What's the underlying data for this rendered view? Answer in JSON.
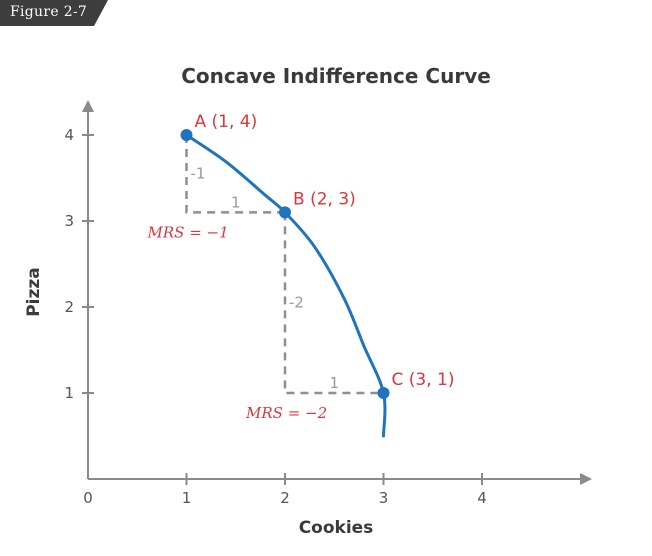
{
  "figure_tag": "Figure 2-7",
  "colors": {
    "axis": "#8a8a8a",
    "curve": "#1f74bd",
    "point": "#1f74bd",
    "label_red": "#d9363e",
    "dash": "#8f8f8f",
    "step_text": "#9a9a9a",
    "tag_bg": "#3d3d3d"
  },
  "chart_data": {
    "type": "line",
    "title": "Concave Indifference Curve",
    "xlabel": "Cookies",
    "ylabel": "Pizza",
    "xlim": [
      0,
      5
    ],
    "ylim": [
      0,
      4.5
    ],
    "x_ticks": [
      "0",
      "1",
      "2",
      "3",
      "4"
    ],
    "y_ticks": [
      "1",
      "2",
      "3",
      "4"
    ],
    "grid": false,
    "curve": {
      "x": [
        1,
        1.4,
        1.8,
        2,
        2.3,
        2.6,
        2.8,
        3,
        3.0
      ],
      "y": [
        4,
        3.69,
        3.3,
        3.1,
        2.7,
        2.1,
        1.55,
        1,
        0.5
      ]
    },
    "points": [
      {
        "label": "A (1, 4)",
        "x": 1,
        "y": 4
      },
      {
        "label": "B (2, 3)",
        "x": 2,
        "y": 3.1
      },
      {
        "label": "C (3, 1)",
        "x": 3,
        "y": 1
      }
    ],
    "steps": [
      {
        "from": [
          1,
          4
        ],
        "corner": [
          1,
          3.1
        ],
        "to": [
          2,
          3.1
        ],
        "rise_label": "-1",
        "run_label": "1",
        "mrs_label": "MRS = −1"
      },
      {
        "from": [
          2,
          3.1
        ],
        "corner": [
          2,
          1
        ],
        "to": [
          3,
          1
        ],
        "rise_label": "-2",
        "run_label": "1",
        "mrs_label": "MRS = −2"
      }
    ]
  }
}
